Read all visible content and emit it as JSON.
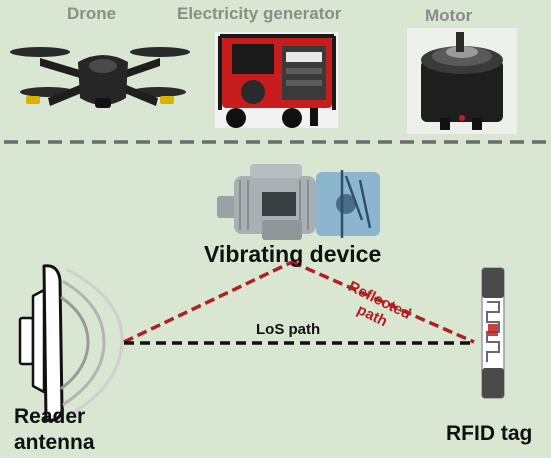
{
  "top_devices": {
    "drone": "Drone",
    "generator": "Electricity generator",
    "motor": "Motor"
  },
  "center": {
    "vibrating_device": "Vibrating device"
  },
  "paths": {
    "reflected_line1": "Reflected",
    "reflected_line2": "path",
    "los": "LoS path"
  },
  "reader": {
    "line1": "Reader",
    "line2": "antenna"
  },
  "tag": {
    "label": "RFID tag"
  },
  "colors": {
    "background": "#d9e6d2",
    "reflected": "#b02020",
    "los": "#111111",
    "divider": "#6b6b6b"
  }
}
